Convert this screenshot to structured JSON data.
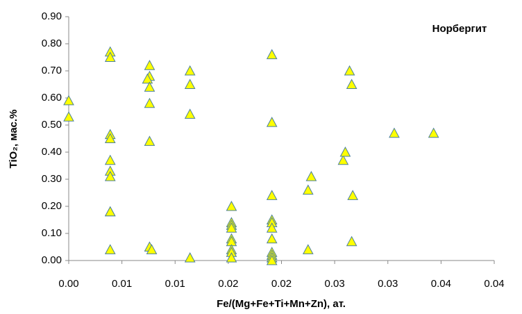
{
  "chart_data": {
    "type": "scatter",
    "annotation": "Норбергит",
    "x_label": "Fe/(Mg+Fe+Ti+Mn+Zn), ат.",
    "y_label": "TiO₂, мас.%",
    "color": "#ffff00",
    "edge_color": "#4a7f9a",
    "grid": false,
    "xlim": [
      0,
      0.04
    ],
    "ylim": [
      0,
      0.9
    ],
    "xticks": [
      {
        "value": 0,
        "label": "0.00"
      },
      {
        "value": 0.005,
        "label": "0.01"
      },
      {
        "value": 0.01,
        "label": "0.01"
      },
      {
        "value": 0.015,
        "label": "0.02"
      },
      {
        "value": 0.02,
        "label": "0.02"
      },
      {
        "value": 0.025,
        "label": "0.03"
      },
      {
        "value": 0.03,
        "label": "0.03"
      },
      {
        "value": 0.035,
        "label": "0.04"
      },
      {
        "value": 0.04,
        "label": "0.04"
      }
    ],
    "yticks": [
      {
        "value": 0,
        "label": "0.00"
      },
      {
        "value": 0.1,
        "label": "0.10"
      },
      {
        "value": 0.2,
        "label": "0.20"
      },
      {
        "value": 0.3,
        "label": "0.30"
      },
      {
        "value": 0.4,
        "label": "0.40"
      },
      {
        "value": 0.5,
        "label": "0.50"
      },
      {
        "value": 0.6,
        "label": "0.60"
      },
      {
        "value": 0.7,
        "label": "0.70"
      },
      {
        "value": 0.8,
        "label": "0.80"
      },
      {
        "value": 0.9,
        "label": "0.90"
      }
    ],
    "x": [
      0,
      0,
      0.0039,
      0.0039,
      0.0039,
      0.0039,
      0.0039,
      0.0039,
      0.0039,
      0.0039,
      0.0039,
      0.0039,
      0.0076,
      0.0076,
      0.0074,
      0.0076,
      0.0076,
      0.0076,
      0.0076,
      0.0078,
      0.0114,
      0.0114,
      0.0114,
      0.0114,
      0.0153,
      0.0153,
      0.0153,
      0.0153,
      0.0153,
      0.0153,
      0.0153,
      0.0153,
      0.0153,
      0.0191,
      0.0191,
      0.0191,
      0.0191,
      0.0191,
      0.0191,
      0.0191,
      0.0191,
      0.0191,
      0.0191,
      0.0191,
      0.0225,
      0.0225,
      0.0228,
      0.0258,
      0.026,
      0.0264,
      0.0266,
      0.0266,
      0.0267,
      0.0306,
      0.0343
    ],
    "values": [
      0.59,
      0.53,
      0.77,
      0.75,
      0.465,
      0.45,
      0.37,
      0.33,
      0.31,
      0.18,
      0.18,
      0.04,
      0.72,
      0.68,
      0.67,
      0.64,
      0.58,
      0.44,
      0.05,
      0.04,
      0.7,
      0.65,
      0.54,
      0.01,
      0.2,
      0.14,
      0.13,
      0.12,
      0.08,
      0.07,
      0.04,
      0.03,
      0.01,
      0.76,
      0.51,
      0.24,
      0.15,
      0.14,
      0.12,
      0.08,
      0.03,
      0.02,
      0.01,
      0.0,
      0.26,
      0.04,
      0.31,
      0.37,
      0.4,
      0.7,
      0.65,
      0.07,
      0.24,
      0.47,
      0.47
    ]
  }
}
